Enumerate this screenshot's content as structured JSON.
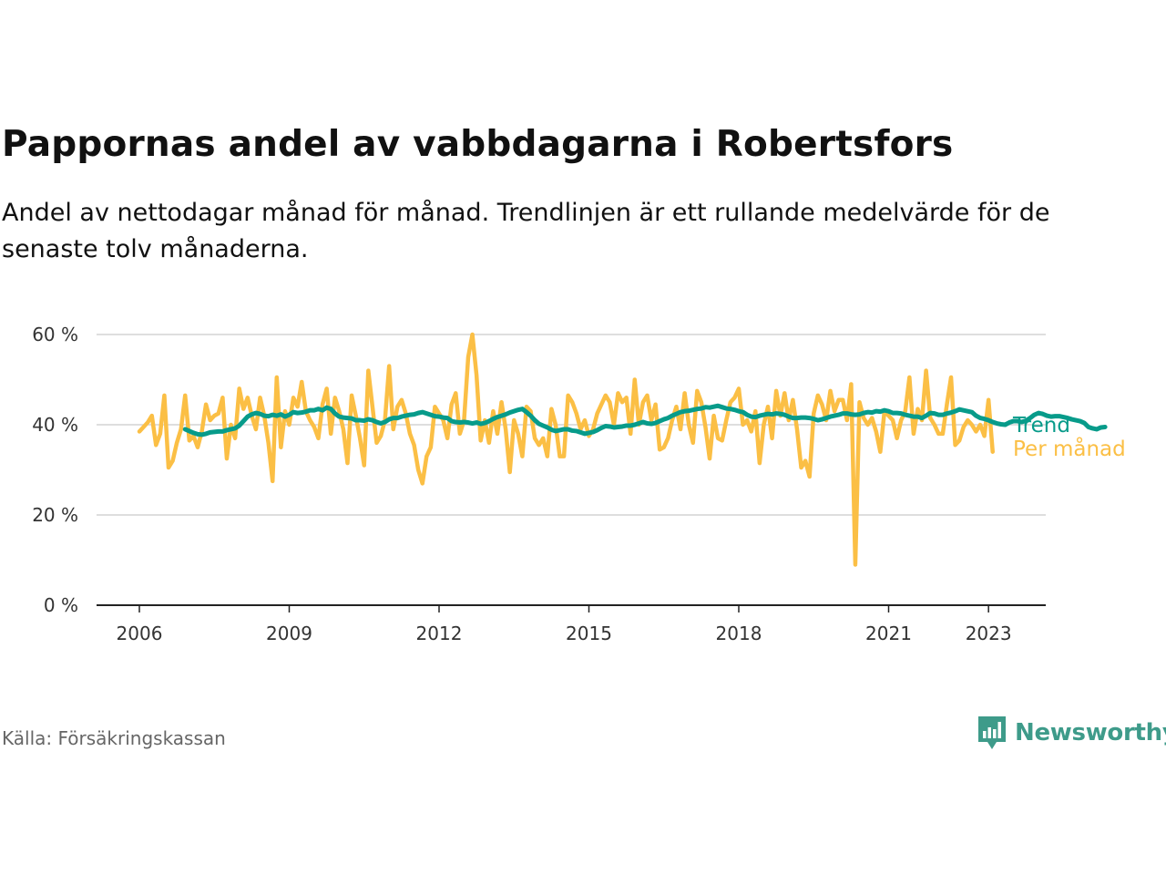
{
  "title": "Pappornas andel av vabbdagarna i Robertsfors",
  "subtitle": "Andel av nettodagar månad för månad. Trendlinjen är ett rullande medelvärde för de senaste tolv månaderna.",
  "source": "Källa: Försäkringskassan",
  "brand": "Newsworthy",
  "colors": {
    "monthly": "#fbbf45",
    "trend": "#079b8a",
    "grid": "#d4d4d4",
    "axis": "#222222",
    "brand": "#3e9b8a"
  },
  "chart_data": {
    "type": "line",
    "title": "Pappornas andel av vabbdagarna i Robertsfors",
    "ylim": [
      0,
      60
    ],
    "xlim": [
      2005.5,
      2024.5
    ],
    "y_ticks": [
      0,
      20,
      40,
      60
    ],
    "y_tick_labels": [
      "0 %",
      "20 %",
      "40 %",
      "60 %"
    ],
    "x_ticks": [
      2006,
      2009,
      2012,
      2015,
      2018,
      2021,
      2023
    ],
    "x_tick_labels": [
      "2006",
      "2009",
      "2012",
      "2015",
      "2018",
      "2021",
      "2023"
    ],
    "grid": "horizontal",
    "series": [
      {
        "name": "Per månad",
        "color": "#fbbf45",
        "start_year": 2006.0,
        "step_months": 1,
        "values": [
          38.5,
          39.5,
          40.5,
          42.0,
          35.5,
          38.0,
          46.5,
          30.5,
          32.0,
          36.0,
          39.0,
          46.5,
          36.5,
          37.5,
          35.0,
          38.5,
          44.5,
          41.0,
          42.0,
          42.5,
          46.0,
          32.5,
          40.0,
          37.0,
          48.0,
          43.5,
          46.0,
          42.0,
          39.0,
          46.0,
          42.0,
          36.0,
          27.5,
          50.5,
          35.0,
          43.0,
          40.0,
          46.0,
          44.0,
          49.5,
          43.0,
          41.0,
          39.5,
          37.0,
          44.5,
          48.0,
          38.0,
          46.0,
          43.0,
          39.0,
          31.5,
          46.5,
          42.0,
          37.0,
          31.0,
          52.0,
          44.0,
          36.0,
          37.5,
          41.0,
          53.0,
          39.0,
          44.0,
          45.5,
          42.5,
          38.0,
          35.5,
          30.0,
          27.0,
          33.0,
          35.0,
          44.0,
          42.5,
          41.0,
          37.0,
          44.5,
          47.0,
          38.0,
          41.0,
          55.0,
          60.0,
          51.0,
          36.5,
          41.0,
          36.0,
          43.0,
          38.0,
          45.0,
          39.0,
          29.5,
          41.0,
          38.0,
          33.0,
          44.0,
          43.0,
          37.0,
          35.5,
          37.0,
          33.0,
          43.5,
          40.0,
          33.0,
          33.0,
          46.5,
          45.0,
          42.5,
          39.0,
          41.0,
          37.5,
          39.0,
          42.5,
          44.5,
          46.5,
          45.0,
          40.0,
          47.0,
          45.0,
          46.0,
          38.0,
          50.0,
          40.0,
          45.0,
          46.5,
          41.0,
          44.5,
          34.5,
          35.0,
          37.0,
          41.0,
          44.0,
          39.0,
          47.0,
          40.0,
          36.0,
          47.5,
          45.0,
          39.5,
          32.5,
          42.0,
          37.0,
          36.5,
          41.0,
          45.0,
          46.0,
          48.0,
          40.0,
          41.0,
          38.5,
          43.0,
          31.5,
          40.0,
          44.0,
          37.0,
          47.5,
          42.0,
          47.0,
          41.0,
          45.5,
          39.0,
          30.5,
          32.0,
          28.5,
          42.5,
          46.5,
          44.5,
          41.0,
          47.5,
          43.0,
          45.5,
          45.5,
          41.0,
          49.0,
          9.0,
          45.0,
          41.5,
          40.0,
          41.5,
          38.5,
          34.0,
          43.0,
          42.0,
          41.0,
          37.0,
          41.0,
          43.0,
          50.5,
          38.0,
          43.5,
          41.0,
          52.0,
          41.5,
          40.0,
          38.0,
          38.0,
          44.5,
          50.5,
          35.5,
          36.5,
          39.5,
          41.0,
          40.0,
          38.5,
          40.0,
          37.5,
          45.5,
          34.0
        ]
      },
      {
        "name": "Trend",
        "color": "#079b8a",
        "start_year": 2006.9167,
        "step_months": 1,
        "values": [
          39.0,
          38.6,
          38.2,
          37.9,
          37.8,
          38.0,
          38.3,
          38.4,
          38.5,
          38.5,
          38.8,
          39.0,
          39.2,
          39.8,
          40.8,
          41.8,
          42.3,
          42.6,
          42.4,
          42.0,
          41.9,
          42.2,
          42.0,
          42.3,
          41.8,
          42.2,
          42.8,
          42.6,
          42.7,
          42.9,
          43.2,
          43.2,
          43.5,
          43.2,
          43.8,
          43.5,
          42.5,
          41.8,
          41.6,
          41.5,
          41.4,
          41.0,
          41.0,
          40.9,
          41.2,
          41.0,
          40.6,
          40.3,
          40.6,
          41.2,
          41.5,
          41.5,
          41.8,
          42.0,
          42.2,
          42.3,
          42.6,
          42.8,
          42.5,
          42.2,
          41.9,
          41.8,
          41.6,
          41.5,
          40.8,
          40.6,
          40.5,
          40.6,
          40.5,
          40.3,
          40.5,
          40.2,
          40.4,
          40.8,
          41.3,
          41.7,
          42.0,
          42.3,
          42.7,
          43.0,
          43.3,
          43.5,
          42.8,
          42.0,
          41.0,
          40.2,
          39.8,
          39.4,
          38.9,
          38.6,
          38.8,
          39.0,
          39.0,
          38.7,
          38.6,
          38.3,
          38.0,
          38.2,
          38.4,
          38.8,
          39.3,
          39.7,
          39.6,
          39.4,
          39.5,
          39.6,
          39.8,
          39.8,
          40.0,
          40.3,
          40.6,
          40.3,
          40.2,
          40.4,
          40.8,
          41.2,
          41.5,
          42.0,
          42.4,
          42.8,
          43.0,
          43.1,
          43.3,
          43.5,
          43.6,
          43.9,
          43.8,
          44.0,
          44.2,
          43.9,
          43.6,
          43.5,
          43.3,
          43.0,
          42.8,
          42.2,
          41.8,
          41.7,
          42.0,
          42.2,
          42.4,
          42.3,
          42.5,
          42.4,
          42.2,
          41.8,
          41.5,
          41.5,
          41.6,
          41.6,
          41.5,
          41.3,
          41.0,
          41.2,
          41.5,
          41.8,
          42.0,
          42.2,
          42.5,
          42.5,
          42.3,
          42.2,
          42.3,
          42.6,
          42.8,
          42.7,
          43.0,
          42.9,
          43.2,
          43.0,
          42.6,
          42.6,
          42.5,
          42.2,
          42.0,
          41.8,
          41.8,
          41.5,
          42.0,
          42.6,
          42.5,
          42.2,
          42.2,
          42.5,
          42.7,
          43.0,
          43.4,
          43.2,
          43.0,
          42.8,
          42.0,
          41.5,
          41.3,
          41.0,
          40.6,
          40.3,
          40.1,
          40.0,
          40.5,
          40.8,
          40.8,
          40.6,
          40.9,
          41.5,
          42.2,
          42.6,
          42.4,
          42.0,
          41.8,
          41.9,
          41.9,
          41.7,
          41.5,
          41.2,
          41.0,
          40.8,
          40.4,
          39.5,
          39.2,
          39.0,
          39.4,
          39.5
        ]
      }
    ]
  }
}
